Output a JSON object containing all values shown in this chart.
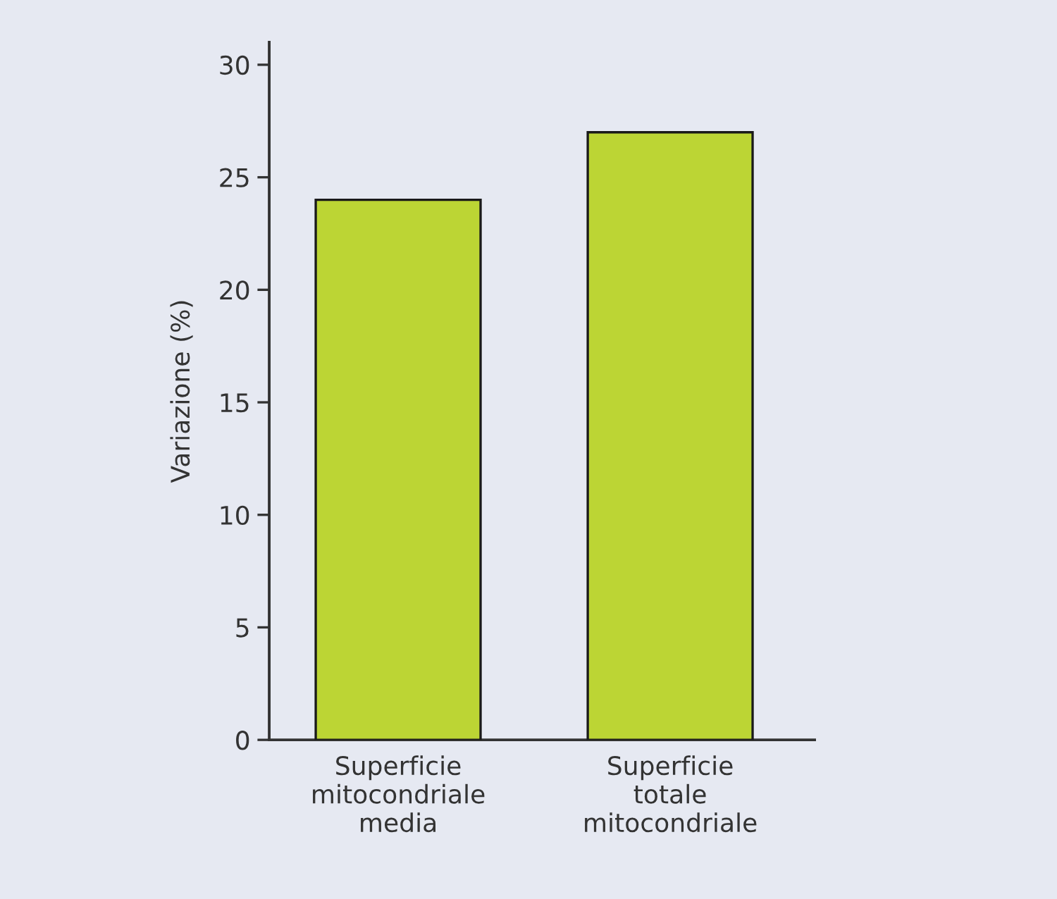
{
  "chart_data": {
    "type": "bar",
    "ylabel": "Variazione (%)",
    "categories": [
      "Superficie\nmitocondriale\nmedia",
      "Superficie\ntotale\nmitocondriale"
    ],
    "values": [
      24,
      27
    ],
    "color": "#bcd534",
    "ylim": [
      0,
      31
    ],
    "yticks": [
      0,
      5,
      10,
      15,
      20,
      25,
      30
    ],
    "grid": false
  }
}
